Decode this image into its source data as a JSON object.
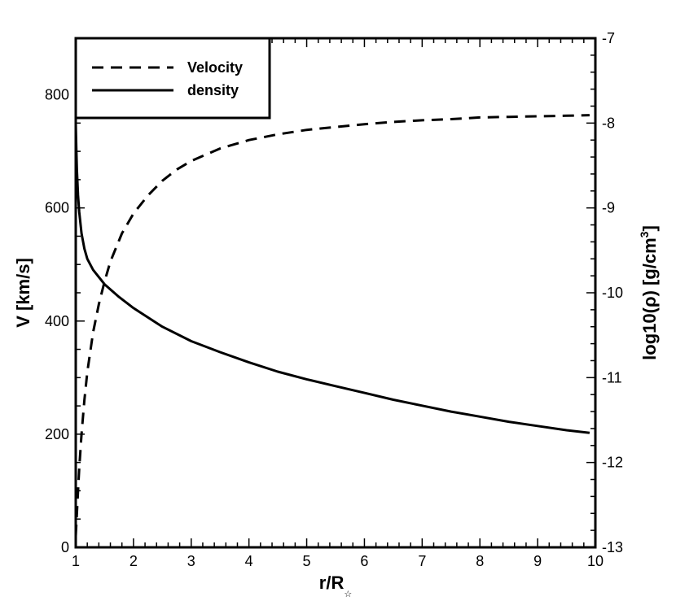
{
  "chart_data": {
    "type": "line",
    "xlabel": "r/R",
    "xlabel_subscript": "☆",
    "ylabel_left": "V [km/s]",
    "ylabel_right_prefix": "log10(ρ) [g/cm",
    "ylabel_right_sup": "3",
    "ylabel_right_suffix": "]",
    "xlim": [
      1,
      10
    ],
    "ylim_left": [
      0,
      900
    ],
    "ylim_right": [
      -13,
      -7
    ],
    "x_ticks": [
      1,
      2,
      3,
      4,
      5,
      6,
      7,
      8,
      9,
      10
    ],
    "y_left_ticks": [
      0,
      200,
      400,
      600,
      800
    ],
    "y_right_ticks": [
      -13,
      -12,
      -11,
      -10,
      -9,
      -8,
      -7
    ],
    "legend_position": "top-left",
    "series": [
      {
        "name": "Velocity",
        "axis": "left",
        "style": "dashed",
        "x": [
          1.0,
          1.03,
          1.06,
          1.1,
          1.15,
          1.2,
          1.3,
          1.4,
          1.5,
          1.6,
          1.8,
          2.0,
          2.25,
          2.5,
          2.75,
          3.0,
          3.5,
          4.0,
          4.5,
          5.0,
          5.5,
          6.0,
          6.5,
          7.0,
          7.5,
          8.0,
          8.5,
          9.0,
          9.5,
          9.9
        ],
        "y": [
          20,
          80,
          140,
          200,
          260,
          310,
          380,
          430,
          470,
          505,
          555,
          590,
          622,
          648,
          668,
          683,
          705,
          720,
          730,
          738,
          743,
          748,
          752,
          755,
          757,
          760,
          761,
          762,
          763,
          764
        ]
      },
      {
        "name": "density",
        "axis": "right",
        "style": "solid",
        "x": [
          1.0,
          1.01,
          1.02,
          1.04,
          1.06,
          1.1,
          1.15,
          1.2,
          1.3,
          1.5,
          1.75,
          2.0,
          2.5,
          3.0,
          3.5,
          4.0,
          4.5,
          5.0,
          5.5,
          6.0,
          6.5,
          7.0,
          7.5,
          8.0,
          8.5,
          9.0,
          9.5,
          9.9
        ],
        "y": [
          -8.0,
          -8.3,
          -8.55,
          -8.85,
          -9.05,
          -9.3,
          -9.48,
          -9.6,
          -9.73,
          -9.9,
          -10.05,
          -10.18,
          -10.4,
          -10.57,
          -10.7,
          -10.82,
          -10.93,
          -11.02,
          -11.1,
          -11.18,
          -11.26,
          -11.33,
          -11.4,
          -11.46,
          -11.52,
          -11.57,
          -11.62,
          -11.65
        ]
      }
    ]
  }
}
